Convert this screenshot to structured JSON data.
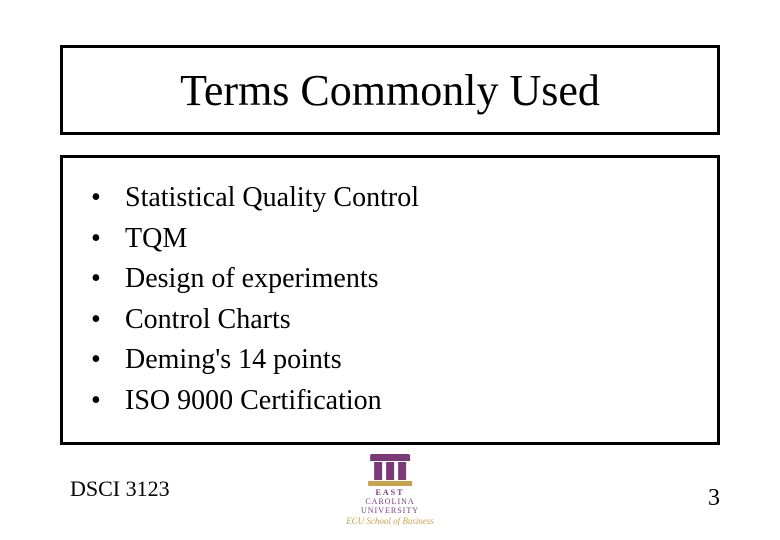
{
  "slide": {
    "title": "Terms Commonly Used",
    "bullets": [
      "Statistical Quality Control",
      "TQM",
      "Design of experiments",
      "Control Charts",
      "Deming's 14 points",
      "ISO 9000 Certification"
    ],
    "footer_left": "DSCI 3123",
    "page_number": "3",
    "logo": {
      "line1": "EAST",
      "line2": "CAROLINA",
      "line3": "UNIVERSITY",
      "tagline": "ECU School of Business",
      "primary_color": "#7a3a7a",
      "accent_color": "#caa24a"
    },
    "styling": {
      "background": "#ffffff",
      "text_color": "#000000",
      "border_color": "#000000",
      "title_fontsize": 44,
      "body_fontsize": 28,
      "footer_fontsize": 22,
      "font_family": "Times New Roman"
    }
  }
}
